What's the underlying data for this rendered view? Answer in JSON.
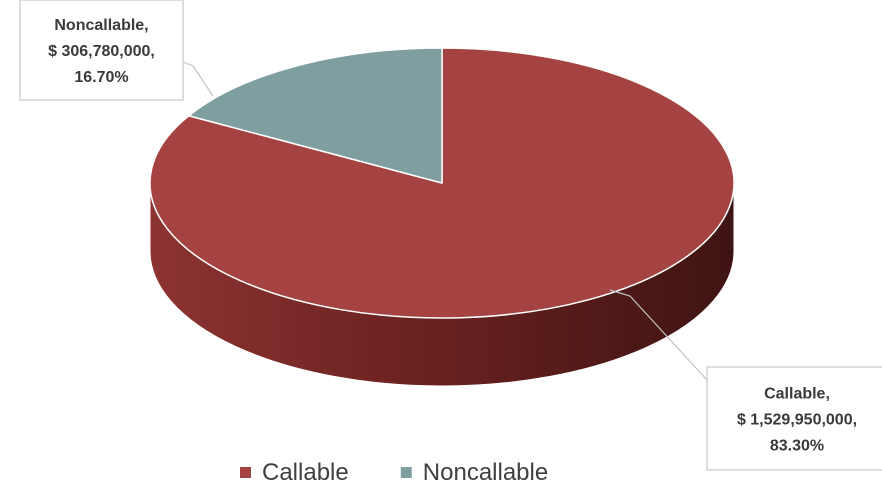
{
  "chart_data": {
    "type": "pie",
    "title": "",
    "three_d": true,
    "legend_position": "bottom",
    "slices": [
      {
        "name": "Callable",
        "value": 1529950000,
        "label_lines": [
          "Callable,",
          "$ 1,529,950,000,",
          "83.30%"
        ],
        "color": "#a54342"
      },
      {
        "name": "Noncallable",
        "value": 306780000,
        "label_lines": [
          "Noncallable,",
          "$ 306,780,000,",
          "16.70%"
        ],
        "color": "#7f9ea0"
      }
    ],
    "legend": [
      {
        "label": "Callable",
        "color": "#a54342"
      },
      {
        "label": "Noncallable",
        "color": "#7f9ea0"
      }
    ]
  }
}
